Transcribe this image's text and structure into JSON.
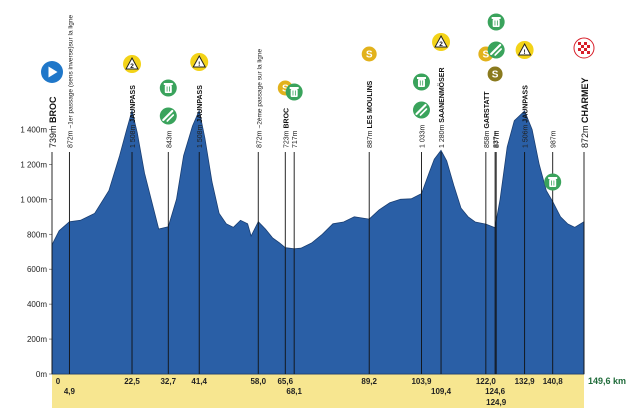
{
  "chart_data": {
    "type": "area",
    "xlabel": "",
    "ylabel": "",
    "x_unit": "km",
    "y_unit": "m",
    "xlim": [
      0,
      149.6
    ],
    "ylim": [
      0,
      1500
    ],
    "y_ticks": [
      {
        "value": 0,
        "label": "0m"
      },
      {
        "value": 200,
        "label": "200m"
      },
      {
        "value": 400,
        "label": "400m"
      },
      {
        "value": 600,
        "label": "600m"
      },
      {
        "value": 800,
        "label": "800m"
      },
      {
        "value": 1000,
        "label": "1 000m"
      },
      {
        "value": 1200,
        "label": "1 200m"
      },
      {
        "value": 1400,
        "label": "1 400m"
      }
    ],
    "total_distance_label": "149,6 km",
    "series": [
      {
        "x": [
          0,
          2,
          4.9,
          8,
          12,
          16,
          19,
          21,
          22.5,
          24,
          26,
          28.5,
          30,
          32.7,
          35,
          37,
          39.5,
          41.4,
          43,
          45,
          47,
          49,
          51,
          53,
          55,
          56,
          58,
          60,
          62,
          64,
          65.6,
          68.1,
          70,
          73,
          76,
          79,
          82,
          85,
          89.2,
          92,
          95,
          98,
          101,
          103.9,
          106,
          107.5,
          109.4,
          111,
          113,
          115,
          117,
          119,
          122,
          124.6,
          124.9,
          126,
          128,
          130,
          132.9,
          135,
          137,
          139,
          140.8,
          143,
          145,
          147,
          149.6
        ],
        "y": [
          739,
          820,
          872,
          880,
          920,
          1050,
          1250,
          1400,
          1508,
          1380,
          1150,
          950,
          830,
          843,
          1000,
          1250,
          1420,
          1508,
          1350,
          1100,
          920,
          860,
          840,
          880,
          860,
          790,
          872,
          830,
          780,
          750,
          723,
          717,
          720,
          750,
          800,
          860,
          870,
          900,
          887,
          940,
          980,
          1000,
          1003,
          1033,
          1150,
          1230,
          1280,
          1220,
          1080,
          950,
          900,
          870,
          858,
          837,
          877,
          1000,
          1300,
          1450,
          1506,
          1400,
          1200,
          1050,
          987,
          900,
          860,
          840,
          872
        ]
      }
    ],
    "start": {
      "name": "BROC",
      "alt_label": "739m",
      "km_label": "0"
    },
    "finish": {
      "name": "CHARMEY",
      "alt_label": "872m"
    },
    "points": [
      {
        "km": 4.9,
        "km_label": "4,9",
        "alt_label": "872m",
        "name": "",
        "note": "~1er passage (sens inverse)sur la ligne",
        "icons": []
      },
      {
        "km": 22.5,
        "km_label": "22,5",
        "alt_label": "1 508m",
        "name": "JAUNPASS",
        "note": "",
        "icons": [
          "climb-cat2-icon"
        ]
      },
      {
        "km": 32.7,
        "km_label": "32,7",
        "alt_label": "843m",
        "name": "",
        "note": "",
        "icons": [
          "water-bottle-icon",
          "feed-zone-icon"
        ]
      },
      {
        "km": 41.4,
        "km_label": "41,4",
        "alt_label": "1 508m",
        "name": "JAUNPASS",
        "note": "",
        "icons": [
          "climb-warning-icon"
        ]
      },
      {
        "km": 58.0,
        "km_label": "58,0",
        "alt_label": "872m",
        "name": "",
        "note": "~2ème passage sur la ligne",
        "icons": []
      },
      {
        "km": 65.6,
        "km_label": "65,6",
        "alt_label": "723m",
        "name": "BROC",
        "note": "",
        "icons": [
          "sprint-icon"
        ]
      },
      {
        "km": 68.1,
        "km_label": "68,1",
        "alt_label": "717m",
        "name": "",
        "note": "",
        "icons": [
          "water-bottle-icon"
        ]
      },
      {
        "km": 89.2,
        "km_label": "89,2",
        "alt_label": "887m",
        "name": "LES MOULINS",
        "note": "",
        "icons": [
          "sprint-icon"
        ]
      },
      {
        "km": 103.9,
        "km_label": "103,9",
        "alt_label": "1 033m",
        "name": "",
        "note": "",
        "icons": [
          "water-bottle-icon",
          "feed-zone-icon"
        ]
      },
      {
        "km": 109.4,
        "km_label": "109,4",
        "alt_label": "1 280m",
        "name": "SAANENMÖSER",
        "note": "",
        "icons": [
          "climb-cat2-icon"
        ]
      },
      {
        "km": 122.0,
        "km_label": "122,0",
        "alt_label": "858m",
        "name": "GARSTATT",
        "note": "",
        "icons": [
          "sprint-icon"
        ]
      },
      {
        "km": 124.6,
        "km_label": "124,6",
        "alt_label": "837m",
        "name": "",
        "note": "",
        "icons": [
          "bonus-sprint-icon"
        ]
      },
      {
        "km": 124.9,
        "km_label": "124,9",
        "alt_label": "877m",
        "name": "",
        "note": "",
        "icons": [
          "water-bottle-icon",
          "feed-zone-icon"
        ]
      },
      {
        "km": 132.9,
        "km_label": "132,9",
        "alt_label": "1 506m",
        "name": "JAUNPASS",
        "note": "",
        "icons": [
          "climb-warning-icon"
        ]
      },
      {
        "km": 140.8,
        "km_label": "140,8",
        "alt_label": "987m",
        "name": "",
        "note": "",
        "icons": [
          "water-bottle-icon"
        ]
      }
    ],
    "colors": {
      "profile_fill": "#2a5fa6",
      "profile_line": "#1a3f73",
      "km_strip": "#f7e690",
      "sprint": "#e2b21c",
      "climb": "#f3d318",
      "water": "#3aa35c",
      "start": "#1f77c9",
      "finish_check": "#d81f2a"
    },
    "grid": false
  },
  "labels": {
    "icon_sprint": "S",
    "icon_cat2": "2",
    "icon_warning": "!"
  }
}
